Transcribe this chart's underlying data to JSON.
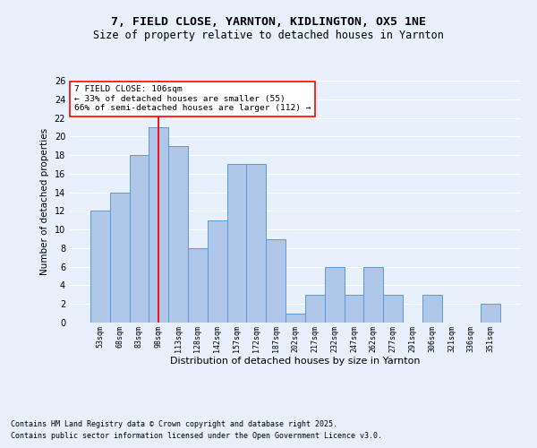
{
  "title1": "7, FIELD CLOSE, YARNTON, KIDLINGTON, OX5 1NE",
  "title2": "Size of property relative to detached houses in Yarnton",
  "xlabel": "Distribution of detached houses by size in Yarnton",
  "ylabel": "Number of detached properties",
  "categories": [
    "53sqm",
    "68sqm",
    "83sqm",
    "98sqm",
    "113sqm",
    "128sqm",
    "142sqm",
    "157sqm",
    "172sqm",
    "187sqm",
    "202sqm",
    "217sqm",
    "232sqm",
    "247sqm",
    "262sqm",
    "277sqm",
    "291sqm",
    "306sqm",
    "321sqm",
    "336sqm",
    "351sqm"
  ],
  "values": [
    12,
    14,
    18,
    21,
    19,
    8,
    11,
    17,
    17,
    9,
    1,
    3,
    6,
    3,
    6,
    3,
    0,
    3,
    0,
    0,
    2
  ],
  "bar_color": "#aec6e8",
  "bar_edge_color": "#5b9bd5",
  "vline_x_index": 3,
  "vline_color": "red",
  "annotation_title": "7 FIELD CLOSE: 106sqm",
  "annotation_line1": "← 33% of detached houses are smaller (55)",
  "annotation_line2": "66% of semi-detached houses are larger (112) →",
  "annotation_box_color": "white",
  "annotation_box_edge_color": "red",
  "ylim": [
    0,
    26
  ],
  "yticks": [
    0,
    2,
    4,
    6,
    8,
    10,
    12,
    14,
    16,
    18,
    20,
    22,
    24,
    26
  ],
  "footer1": "Contains HM Land Registry data © Crown copyright and database right 2025.",
  "footer2": "Contains public sector information licensed under the Open Government Licence v3.0.",
  "bg_color": "#e8f0fb",
  "grid_color": "white",
  "title1_fontsize": 9.5,
  "title2_fontsize": 8.5
}
